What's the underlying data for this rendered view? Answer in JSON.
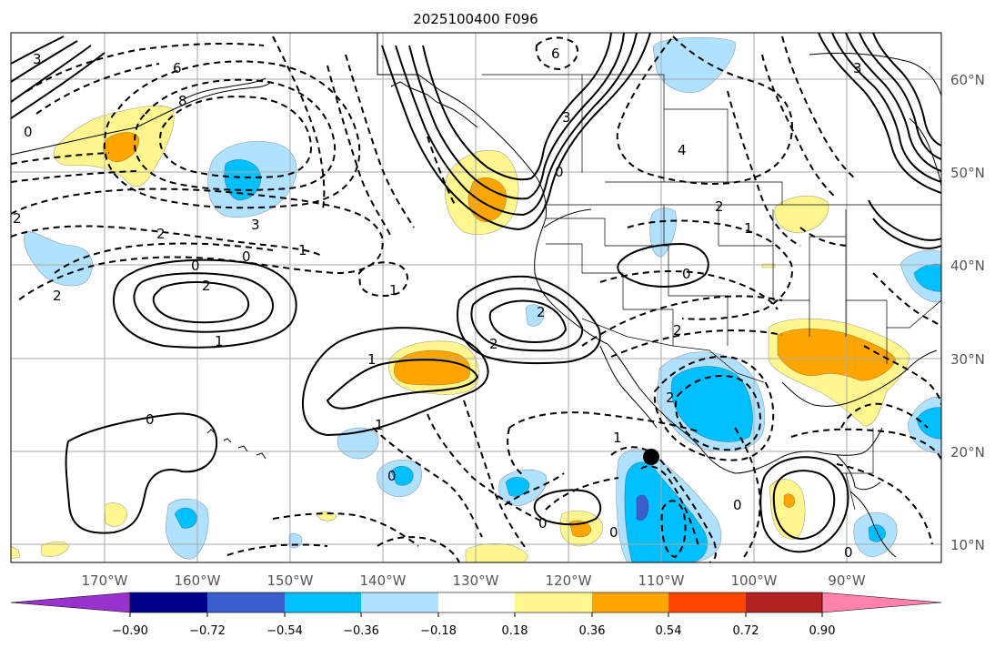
{
  "title": "2025100400 F096",
  "colors": {
    "c_m4": "#9932cc",
    "c_m3": "#00008b",
    "c_m2": "#3a5fcd",
    "c_m1": "#00bfff",
    "c_m0": "#b0e2ff",
    "c_p0": "#fff68f",
    "c_p1": "#ffa500",
    "c_p2": "#ff4500",
    "c_p3": "#b22222",
    "c_p4": "#ff82ab"
  },
  "axes": {
    "lon_labels": [
      "170°W",
      "160°W",
      "150°W",
      "140°W",
      "130°W",
      "120°W",
      "110°W",
      "100°W",
      "90°W"
    ],
    "lat_labels": [
      "60°N",
      "50°N",
      "40°N",
      "30°N",
      "20°N",
      "10°N"
    ]
  },
  "colorbar": {
    "ticks": [
      "−0.90",
      "−0.72",
      "−0.54",
      "−0.36",
      "−0.18",
      "0.18",
      "0.36",
      "0.54",
      "0.72",
      "0.90"
    ]
  },
  "contour_labels": {
    "l01": "3",
    "l02": "6",
    "l03": "8",
    "l04": "0",
    "l05": "2",
    "l06": "3",
    "l07": "2",
    "l08": "0",
    "l09": "1",
    "l10": "0",
    "l11": "2",
    "l12": "1",
    "l13": "1",
    "l14": "2",
    "l15": "1",
    "l16": "0",
    "l17": "1",
    "l18": "2",
    "l19": "2",
    "l20": "0",
    "l21": "0",
    "l22": "0",
    "l23": "6",
    "l24": "3",
    "l25": "4",
    "l26": "0",
    "l27": "2",
    "l28": "1",
    "l29": "2",
    "l30": "0",
    "l31": "0",
    "l32": "0",
    "l33": "3",
    "l34": "2",
    "l35": "1"
  }
}
